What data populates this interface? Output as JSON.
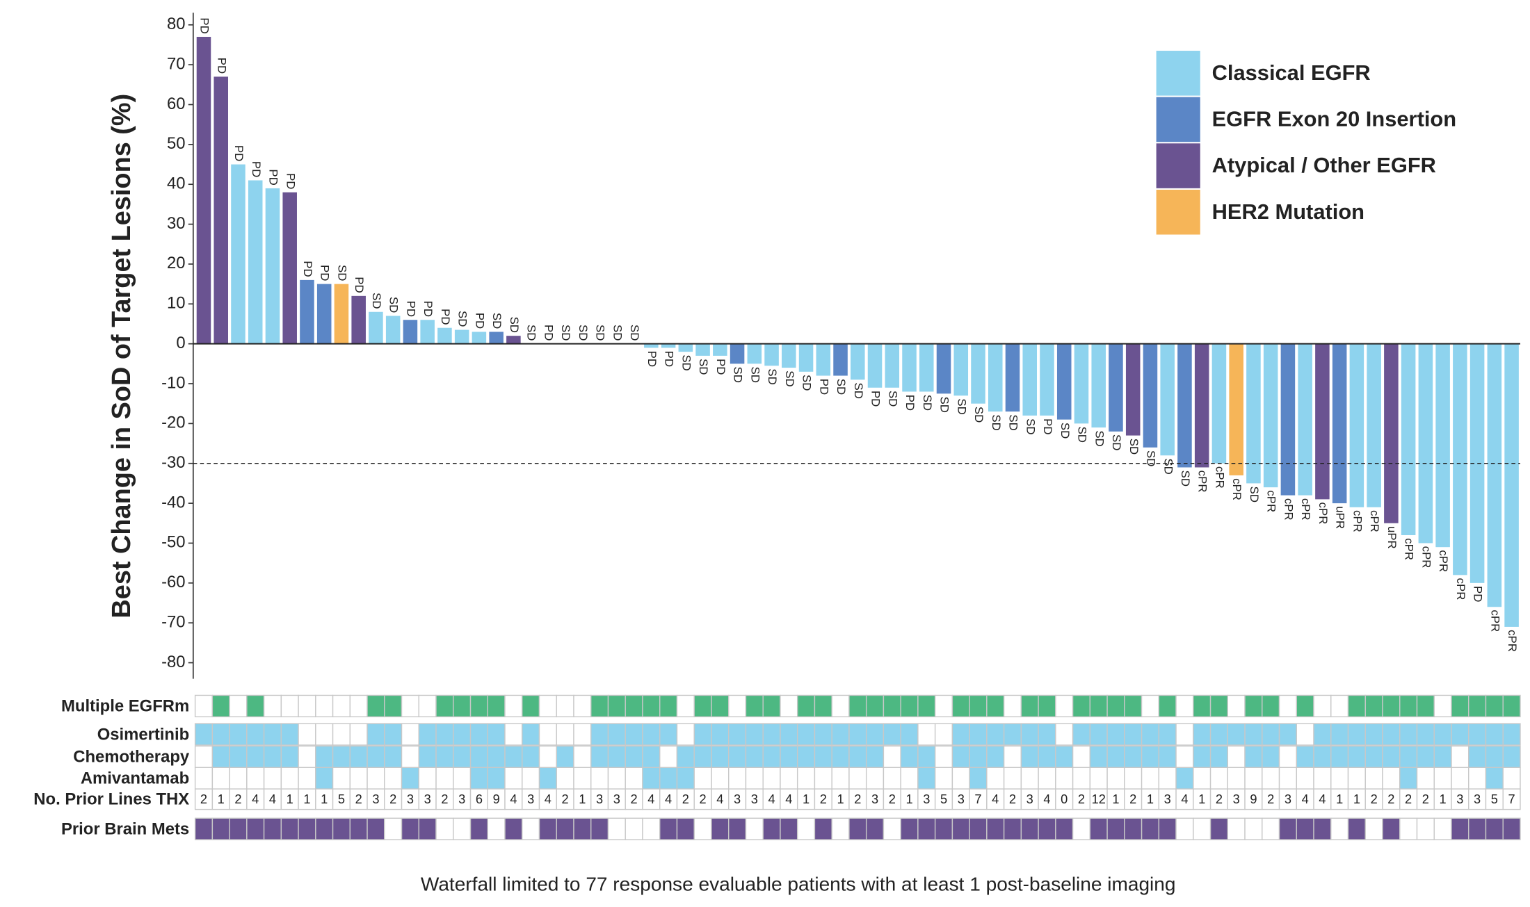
{
  "chart_data": {
    "type": "bar",
    "ylabel": "Best Change in SoD of Target Lesions (%)",
    "caption": "Waterfall limited to 77 response evaluable patients with at least 1 post-baseline imaging",
    "ylim": [
      -85,
      85
    ],
    "yticks": [
      -80,
      -70,
      -60,
      -50,
      -40,
      -30,
      -20,
      -10,
      0,
      10,
      20,
      30,
      40,
      50,
      60,
      70,
      80
    ],
    "reference_line": -30,
    "series": [
      {
        "name": "Classical EGFR",
        "color": "#8ed3ee",
        "values": [
          null,
          null,
          45,
          41,
          39,
          null,
          null,
          null,
          null,
          null,
          8,
          7,
          null,
          6,
          4,
          3.5,
          3,
          null,
          null,
          0,
          0,
          0,
          0,
          0,
          0,
          0,
          -1,
          -1,
          -2,
          -3,
          -3,
          null,
          -5,
          -5.5,
          -6,
          -7,
          -8,
          null,
          -9,
          -11,
          -11,
          -12,
          -12,
          null,
          -13,
          -15,
          -17,
          null,
          -18,
          -18,
          null,
          -20,
          -21,
          null,
          null,
          null,
          -28,
          null,
          null,
          -30,
          null,
          -35,
          -36,
          null,
          -38,
          null,
          null,
          -41,
          -41,
          null,
          -48,
          -50,
          -51,
          -58,
          -60,
          -66,
          -71
        ]
      },
      {
        "name": "EGFR Exon 20 Insertion",
        "color": "#5b86c6",
        "values": [
          null,
          null,
          null,
          null,
          null,
          null,
          16,
          15,
          null,
          null,
          null,
          null,
          6,
          null,
          null,
          null,
          null,
          3,
          null,
          null,
          null,
          null,
          null,
          null,
          null,
          null,
          null,
          null,
          null,
          null,
          null,
          -5,
          null,
          null,
          null,
          null,
          null,
          -8,
          null,
          null,
          null,
          null,
          null,
          -12.5,
          null,
          null,
          null,
          -17,
          null,
          null,
          -19,
          null,
          null,
          -22,
          null,
          -26,
          null,
          -31,
          null,
          null,
          null,
          null,
          null,
          -38,
          null,
          null,
          -40,
          null,
          null,
          null,
          null,
          null,
          null,
          null,
          null,
          null,
          null
        ]
      },
      {
        "name": "Atypical / Other EGFR",
        "color": "#6a5391",
        "values": [
          77,
          67,
          null,
          null,
          null,
          38,
          null,
          null,
          null,
          12,
          null,
          null,
          null,
          null,
          null,
          null,
          null,
          null,
          2,
          null,
          null,
          null,
          null,
          null,
          null,
          null,
          null,
          null,
          null,
          null,
          null,
          null,
          null,
          null,
          null,
          null,
          null,
          null,
          null,
          null,
          null,
          null,
          null,
          null,
          null,
          null,
          null,
          null,
          null,
          null,
          null,
          null,
          null,
          null,
          -23,
          null,
          null,
          null,
          -31,
          null,
          null,
          null,
          null,
          null,
          null,
          -39,
          null,
          null,
          null,
          -45,
          null,
          null,
          null,
          null,
          null,
          null,
          null
        ]
      },
      {
        "name": "HER2 Mutation",
        "color": "#f6b558",
        "values": [
          null,
          null,
          null,
          null,
          null,
          null,
          null,
          null,
          15,
          null,
          null,
          null,
          null,
          null,
          null,
          null,
          null,
          null,
          null,
          null,
          null,
          null,
          null,
          null,
          null,
          null,
          null,
          null,
          null,
          null,
          null,
          null,
          null,
          null,
          null,
          null,
          null,
          null,
          null,
          null,
          null,
          null,
          null,
          null,
          null,
          null,
          null,
          null,
          null,
          null,
          null,
          null,
          null,
          null,
          null,
          null,
          null,
          null,
          null,
          null,
          -33,
          null,
          null,
          null,
          null,
          null,
          null,
          null,
          null,
          null,
          null,
          null,
          null,
          null,
          null,
          null,
          null
        ]
      }
    ],
    "response_labels": [
      "PD",
      "PD",
      "PD",
      "PD",
      "PD",
      "PD",
      "PD",
      "PD",
      "SD",
      "PD",
      "SD",
      "SD",
      "PD",
      "PD",
      "PD",
      "SD",
      "PD",
      "SD",
      "SD",
      "SD",
      "PD",
      "SD",
      "SD",
      "SD",
      "SD",
      "SD",
      "PD",
      "PD",
      "SD",
      "SD",
      "PD",
      "SD",
      "SD",
      "SD",
      "SD",
      "SD",
      "PD",
      "SD",
      "SD",
      "PD",
      "SD",
      "PD",
      "SD",
      "SD",
      "SD",
      "SD",
      "SD",
      "SD",
      "SD",
      "PD",
      "SD",
      "SD",
      "SD",
      "SD",
      "SD",
      "SD",
      "SD",
      "SD",
      "cPR",
      "cPR",
      "cPR",
      "SD",
      "cPR",
      "cPR",
      "cPR",
      "cPR",
      "uPR",
      "cPR",
      "cPR",
      "uPR",
      "cPR",
      "cPR",
      "cPR",
      "cPR",
      "PD",
      "cPR",
      "cPR"
    ],
    "tracks": [
      {
        "name": "Multiple EGFRm",
        "color": "#4db882",
        "values": [
          0,
          1,
          0,
          1,
          0,
          0,
          0,
          0,
          0,
          0,
          1,
          1,
          0,
          0,
          1,
          1,
          1,
          1,
          0,
          1,
          0,
          0,
          0,
          1,
          1,
          1,
          1,
          1,
          0,
          1,
          1,
          0,
          1,
          1,
          0,
          1,
          1,
          0,
          1,
          1,
          1,
          1,
          1,
          0,
          1,
          1,
          1,
          0,
          1,
          1,
          0,
          1,
          1,
          1,
          1,
          0,
          1,
          0,
          1,
          1,
          0,
          1,
          1,
          0,
          1,
          0,
          0,
          1,
          1,
          1,
          1,
          1,
          0,
          1,
          1,
          1,
          1
        ]
      },
      {
        "name": "Osimertinib",
        "color": "#8ed3ee",
        "values": [
          1,
          1,
          1,
          1,
          1,
          1,
          0,
          0,
          0,
          0,
          1,
          1,
          0,
          1,
          1,
          1,
          1,
          1,
          0,
          1,
          0,
          0,
          0,
          1,
          1,
          1,
          1,
          1,
          0,
          1,
          1,
          1,
          1,
          1,
          1,
          1,
          1,
          1,
          1,
          1,
          1,
          1,
          0,
          0,
          1,
          1,
          1,
          1,
          1,
          1,
          0,
          1,
          1,
          1,
          1,
          1,
          1,
          0,
          1,
          1,
          1,
          1,
          1,
          1,
          0,
          1,
          1,
          1,
          1,
          1,
          1,
          1,
          1,
          1,
          1,
          1,
          1
        ]
      },
      {
        "name": "Chemotherapy",
        "color": "#8ed3ee",
        "values": [
          0,
          1,
          1,
          1,
          1,
          1,
          0,
          1,
          1,
          1,
          1,
          1,
          0,
          1,
          1,
          1,
          1,
          1,
          1,
          1,
          0,
          1,
          0,
          1,
          1,
          1,
          1,
          0,
          1,
          1,
          1,
          1,
          1,
          1,
          1,
          1,
          1,
          1,
          1,
          1,
          0,
          1,
          1,
          0,
          1,
          1,
          1,
          0,
          1,
          1,
          1,
          0,
          1,
          1,
          1,
          1,
          1,
          0,
          1,
          1,
          0,
          1,
          1,
          0,
          1,
          1,
          1,
          1,
          1,
          1,
          1,
          1,
          1,
          0,
          1,
          1,
          1
        ]
      },
      {
        "name": "Amivantamab",
        "color": "#8ed3ee",
        "values": [
          0,
          0,
          0,
          0,
          0,
          0,
          0,
          1,
          0,
          0,
          0,
          0,
          1,
          0,
          0,
          0,
          1,
          1,
          0,
          0,
          1,
          0,
          0,
          0,
          0,
          0,
          1,
          1,
          1,
          0,
          0,
          0,
          0,
          0,
          0,
          0,
          0,
          0,
          0,
          0,
          0,
          0,
          1,
          0,
          0,
          1,
          0,
          0,
          0,
          0,
          0,
          0,
          0,
          0,
          0,
          0,
          0,
          1,
          0,
          0,
          0,
          0,
          0,
          0,
          0,
          0,
          0,
          0,
          0,
          0,
          1,
          0,
          0,
          0,
          0,
          1,
          0
        ]
      },
      {
        "name": "No. Prior Lines THX",
        "values": [
          2,
          1,
          2,
          4,
          4,
          1,
          1,
          1,
          5,
          2,
          3,
          2,
          3,
          3,
          2,
          3,
          6,
          9,
          4,
          3,
          4,
          2,
          1,
          3,
          3,
          2,
          4,
          4,
          2,
          2,
          4,
          3,
          3,
          4,
          4,
          1,
          2,
          1,
          2,
          3,
          2,
          1,
          3,
          5,
          3,
          7,
          4,
          2,
          3,
          4,
          0,
          2,
          12,
          1,
          2,
          1,
          3,
          4,
          1,
          2,
          3,
          9,
          2,
          3,
          4,
          4,
          1,
          1,
          2,
          2,
          2,
          2,
          1,
          3,
          3,
          5,
          7
        ]
      },
      {
        "name": "Prior Brain Mets",
        "color": "#6a5391",
        "values": [
          1,
          1,
          1,
          1,
          1,
          1,
          1,
          1,
          1,
          1,
          1,
          0,
          1,
          1,
          0,
          0,
          1,
          0,
          1,
          0,
          1,
          1,
          1,
          1,
          0,
          0,
          0,
          1,
          1,
          0,
          1,
          1,
          0,
          1,
          1,
          0,
          1,
          0,
          1,
          1,
          0,
          1,
          1,
          1,
          1,
          1,
          1,
          1,
          1,
          1,
          1,
          0,
          1,
          1,
          1,
          1,
          1,
          0,
          0,
          1,
          0,
          0,
          0,
          1,
          1,
          1,
          0,
          1,
          0,
          1,
          0,
          0,
          0,
          1,
          1,
          1,
          1
        ]
      }
    ]
  }
}
